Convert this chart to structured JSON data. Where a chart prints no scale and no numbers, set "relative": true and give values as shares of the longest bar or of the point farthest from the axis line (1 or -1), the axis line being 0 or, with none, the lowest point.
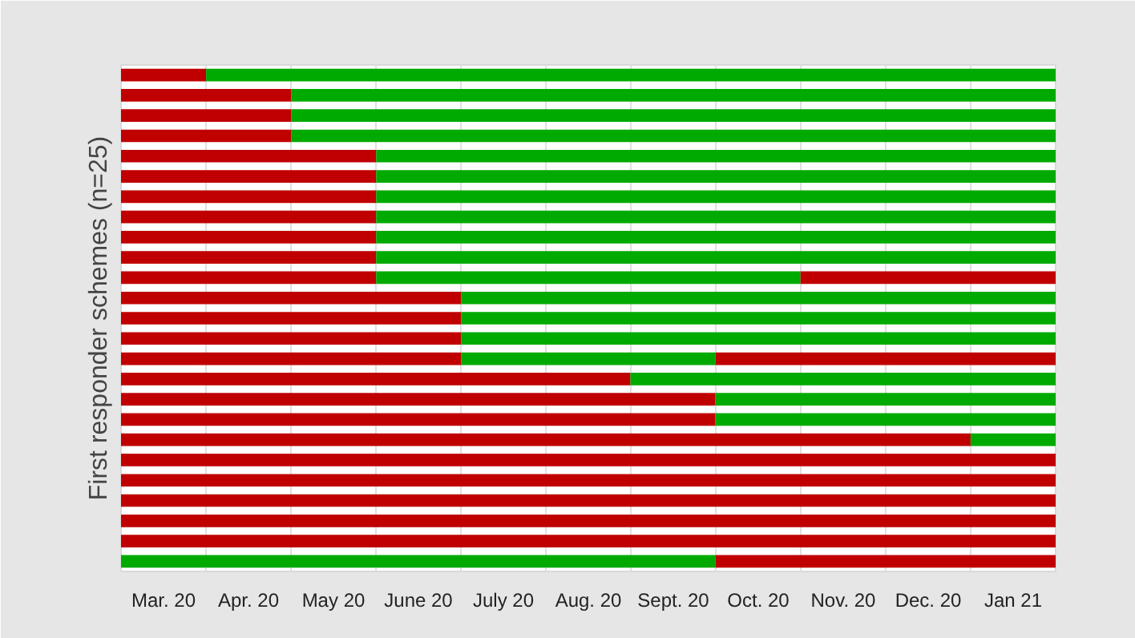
{
  "chart_data": {
    "type": "bar",
    "orientation": "horizontal",
    "stacked": true,
    "relative": true,
    "ylabel": "First responder schemes (n=25)",
    "categories": [
      null,
      null,
      null,
      null,
      null,
      null,
      null,
      null,
      null,
      null,
      null,
      null,
      null,
      null,
      null,
      null,
      null,
      null,
      null,
      null,
      null,
      null,
      null,
      null,
      null
    ],
    "annotations": [
      "Mar. 20",
      "Apr. 20",
      "May 20",
      "June 20",
      "July 20",
      "Aug. 20",
      "Sept. 20",
      "Oct. 20",
      "Nov. 20",
      "Dec. 20",
      "Jan 21"
    ],
    "grid": "x",
    "series": [
      {
        "values": [
          0.091,
          0.182,
          0.182,
          0.182,
          0.273,
          0.273,
          0.273,
          0.273,
          0.273,
          0.273,
          0.273,
          0.364,
          0.364,
          0.364,
          0.364,
          0.545,
          0.636,
          0.636,
          0.909,
          1,
          1,
          1,
          1,
          1,
          0.636
        ],
        "colors": [
          "#c00000",
          "#c00000",
          "#c00000",
          "#c00000",
          "#c00000",
          "#c00000",
          "#c00000",
          "#c00000",
          "#c00000",
          "#c00000",
          "#c00000",
          "#c00000",
          "#c00000",
          "#c00000",
          "#c00000",
          "#c00000",
          "#c00000",
          "#c00000",
          "#c00000",
          "#c00000",
          "#c00000",
          "#c00000",
          "#c00000",
          "#c00000",
          "#00aa00"
        ]
      },
      {
        "values": [
          0.909,
          0.818,
          0.818,
          0.818,
          0.727,
          0.727,
          0.727,
          0.727,
          0.727,
          0.727,
          0.454,
          0.636,
          0.636,
          0.636,
          0.272,
          0.455,
          0.364,
          0.364,
          0.091,
          null,
          null,
          null,
          null,
          null,
          0.364
        ],
        "colors": [
          "#00aa00",
          "#00aa00",
          "#00aa00",
          "#00aa00",
          "#00aa00",
          "#00aa00",
          "#00aa00",
          "#00aa00",
          "#00aa00",
          "#00aa00",
          "#00aa00",
          "#00aa00",
          "#00aa00",
          "#00aa00",
          "#00aa00",
          "#00aa00",
          "#00aa00",
          "#00aa00",
          "#00aa00",
          "#00aa00",
          "#00aa00",
          "#00aa00",
          "#00aa00",
          "#00aa00",
          "#c00000"
        ]
      },
      {
        "values": [
          null,
          null,
          null,
          null,
          null,
          null,
          null,
          null,
          null,
          null,
          0.273,
          null,
          null,
          null,
          0.364,
          null,
          null,
          null,
          null,
          null,
          null,
          null,
          null,
          null,
          null
        ],
        "colors": [
          "#c00000",
          "#c00000",
          "#c00000",
          "#c00000",
          "#c00000",
          "#c00000",
          "#c00000",
          "#c00000",
          "#c00000",
          "#c00000",
          "#c00000",
          "#c00000",
          "#c00000",
          "#c00000",
          "#c00000",
          "#c00000",
          "#c00000",
          "#c00000",
          "#c00000",
          "#c00000",
          "#c00000",
          "#c00000",
          "#c00000",
          "#c00000",
          "#c00000"
        ]
      }
    ]
  }
}
